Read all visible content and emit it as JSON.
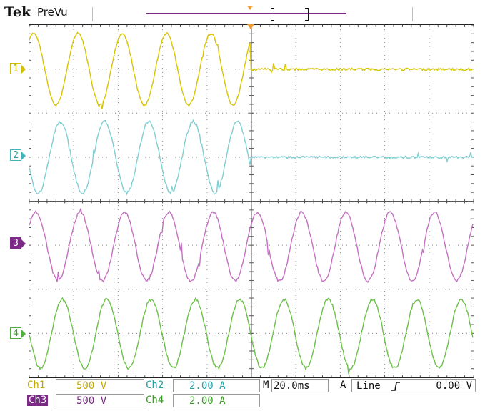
{
  "header": {
    "brand": "Tek",
    "mode": "PreVu"
  },
  "channels": [
    {
      "id": "1",
      "label": "Ch1",
      "scale": "500 V",
      "color": "#d9c400",
      "state": "drops to flat line at trigger"
    },
    {
      "id": "2",
      "label": "Ch2",
      "scale": "2.00 A",
      "color": "#7fcfd1",
      "state": "drops to flat line at trigger"
    },
    {
      "id": "3",
      "label": "Ch3",
      "scale": "500 V",
      "color": "#c470c2",
      "state": "continuous sine"
    },
    {
      "id": "4",
      "label": "Ch4",
      "scale": "2.00 A",
      "color": "#6cc04a",
      "state": "continuous sine"
    }
  ],
  "timebase": {
    "label": "M",
    "value": "20.0ms"
  },
  "trigger": {
    "mode": "A",
    "source": "Line",
    "slope_icon": "rising-edge-icon",
    "level": "0.00 V"
  },
  "colors": {
    "record_bar": "#7b2a86",
    "trigger_marker": "#f29a2e",
    "grid": "#8a8a8a"
  }
}
